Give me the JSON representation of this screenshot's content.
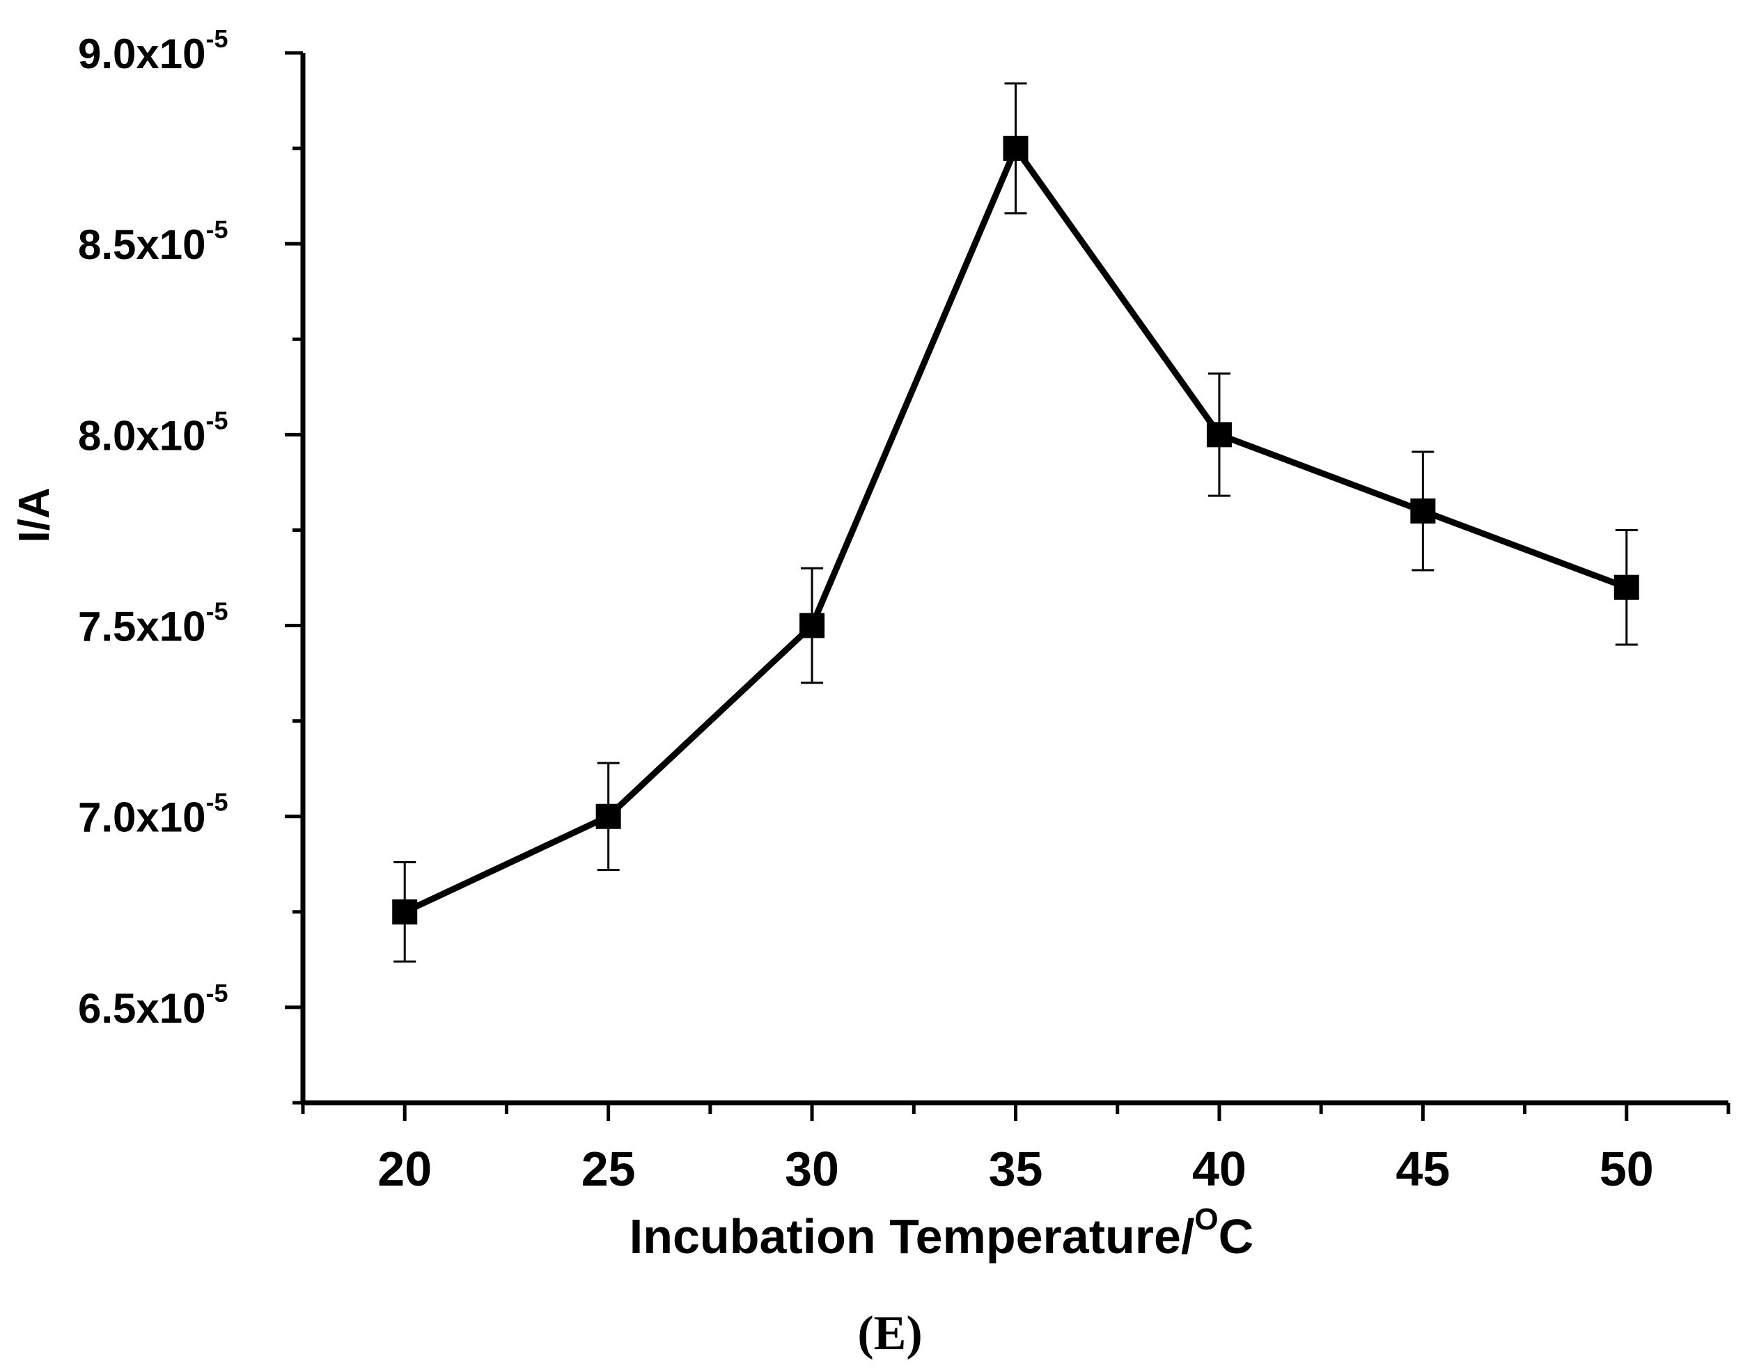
{
  "chart_data": {
    "type": "line",
    "panel_label": "(E)",
    "xlabel": "Incubation Temperature/",
    "xlabel_unit_sup": "O",
    "xlabel_unit": "C",
    "ylabel": "I/A",
    "x": [
      20,
      25,
      30,
      35,
      40,
      45,
      50
    ],
    "series": [
      {
        "name": "I/A",
        "values": [
          6.75e-05,
          7e-05,
          7.5e-05,
          8.75e-05,
          8e-05,
          7.8e-05,
          7.6e-05
        ],
        "error": [
          1.3e-06,
          1.4e-06,
          1.5e-06,
          1.7e-06,
          1.6e-06,
          1.55e-06,
          1.5e-06
        ],
        "color": "#000000"
      }
    ],
    "xlim": [
      17.5,
      52.5
    ],
    "ylim": [
      6.25e-05,
      9e-05
    ],
    "x_ticks": [
      "20",
      "25",
      "30",
      "35",
      "40",
      "45",
      "50"
    ],
    "y_ticks": [
      {
        "mantissa": "6.5x10",
        "exp": "-5",
        "value": 6.5e-05
      },
      {
        "mantissa": "7.0x10",
        "exp": "-5",
        "value": 7e-05
      },
      {
        "mantissa": "7.5x10",
        "exp": "-5",
        "value": 7.5e-05
      },
      {
        "mantissa": "8.0x10",
        "exp": "-5",
        "value": 8e-05
      },
      {
        "mantissa": "8.5x10",
        "exp": "-5",
        "value": 8.5e-05
      },
      {
        "mantissa": "9.0x10",
        "exp": "-5",
        "value": 9e-05
      }
    ],
    "x_minor_step": 2.5,
    "y_minor_step": 2.5e-06,
    "grid": false
  }
}
